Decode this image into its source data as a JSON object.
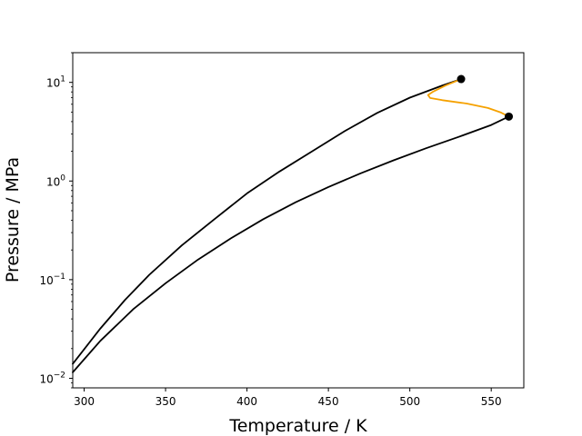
{
  "chart_data": {
    "type": "line",
    "xlabel": "Temperature / K",
    "ylabel": "Pressure / MPa",
    "xlim": [
      293,
      570
    ],
    "ylim": [
      0.008,
      20
    ],
    "yscale": "log",
    "grid": false,
    "x_ticks": [
      300,
      350,
      400,
      450,
      500,
      550
    ],
    "x_tick_labels": [
      "300",
      "350",
      "400",
      "450",
      "500",
      "550"
    ],
    "y_ticks": [
      0.01,
      0.1,
      1,
      10
    ],
    "y_tick_labels": [
      {
        "base": "10",
        "exp": "−2"
      },
      {
        "base": "10",
        "exp": "−1"
      },
      {
        "base": "10",
        "exp": "0"
      },
      {
        "base": "10",
        "exp": "1"
      }
    ],
    "series": [
      {
        "color": "#000000",
        "x": [
          293,
          310,
          325,
          340,
          360,
          380,
          400,
          420,
          440,
          460,
          480,
          500,
          520,
          531.5
        ],
        "y": [
          0.014,
          0.032,
          0.062,
          0.112,
          0.223,
          0.41,
          0.75,
          1.25,
          2.0,
          3.2,
          4.9,
          7.0,
          9.3,
          10.8
        ]
      },
      {
        "color": "#000000",
        "x": [
          293,
          310,
          330,
          350,
          370,
          390,
          410,
          430,
          450,
          470,
          490,
          510,
          530,
          550,
          560.8
        ],
        "y": [
          0.0115,
          0.024,
          0.05,
          0.092,
          0.16,
          0.262,
          0.41,
          0.61,
          0.87,
          1.2,
          1.62,
          2.15,
          2.8,
          3.7,
          4.5
        ]
      },
      {
        "color": "#f5a100",
        "x": [
          531.5,
          522,
          514,
          511.2,
          512.5,
          520,
          535,
          548,
          556,
          560.8
        ],
        "y": [
          10.8,
          9.3,
          8.0,
          7.45,
          6.95,
          6.6,
          6.1,
          5.5,
          4.95,
          4.5
        ]
      }
    ],
    "markers": [
      {
        "x": 531.5,
        "y": 10.8,
        "color": "#000000"
      },
      {
        "x": 560.8,
        "y": 4.5,
        "color": "#000000"
      }
    ]
  }
}
